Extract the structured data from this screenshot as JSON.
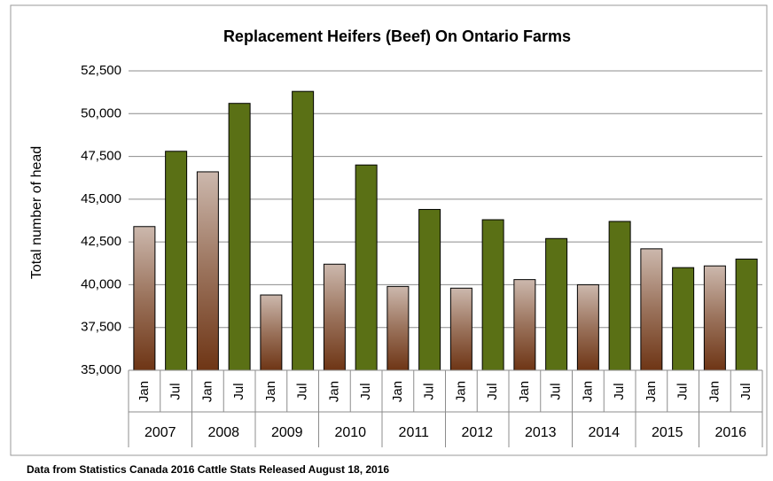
{
  "chart_data": {
    "type": "bar",
    "title": "Replacement Heifers (Beef) On Ontario Farms",
    "y_label": "Total number of head",
    "footnote": "Data from Statistics Canada 2016 Cattle Stats  Released August 18, 2016",
    "categories": [
      "Jan",
      "Jul",
      "Jan",
      "Jul",
      "Jan",
      "Jul",
      "Jan",
      "Jul",
      "Jan",
      "Jul",
      "Jan",
      "Jul",
      "Jan",
      "Jul",
      "Jan",
      "Jul",
      "Jan",
      "Jul",
      "Jan",
      "Jul"
    ],
    "groups": [
      "2007",
      "2008",
      "2009",
      "2010",
      "2011",
      "2012",
      "2013",
      "2014",
      "2015",
      "2016"
    ],
    "values": [
      43400,
      47800,
      46600,
      50600,
      39400,
      51300,
      41200,
      47000,
      39900,
      44400,
      39800,
      43800,
      40300,
      42700,
      40000,
      43700,
      42100,
      41000,
      41100,
      41500
    ],
    "colors": [
      "#6e3515",
      "#5a7015"
    ],
    "ylim": [
      35000,
      52500
    ],
    "yticks": [
      {
        "value": 35000,
        "label": "35,000"
      },
      {
        "value": 37500,
        "label": "37,500"
      },
      {
        "value": 40000,
        "label": "40,000"
      },
      {
        "value": 42500,
        "label": "42,500"
      },
      {
        "value": 45000,
        "label": "45,000"
      },
      {
        "value": 47500,
        "label": "47,500"
      },
      {
        "value": 50000,
        "label": "50,000"
      },
      {
        "value": 52500,
        "label": "52,500"
      }
    ],
    "grid": true
  }
}
